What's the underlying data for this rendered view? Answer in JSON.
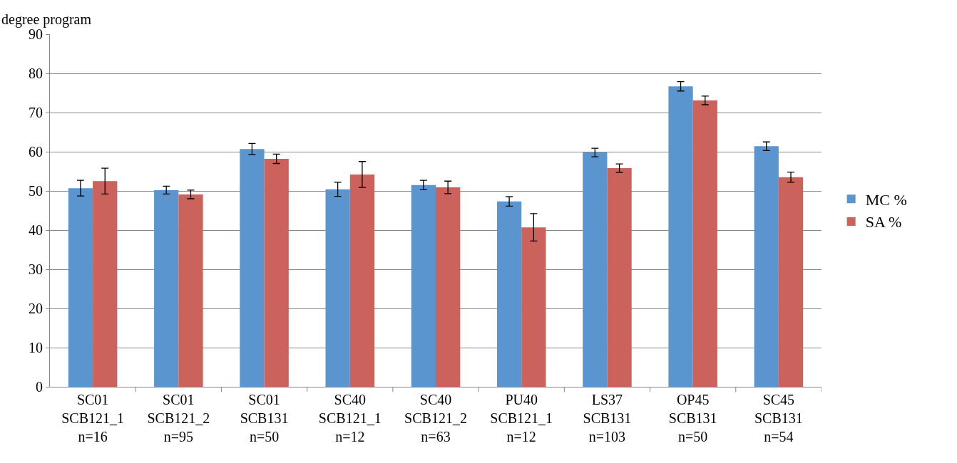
{
  "chart_data": {
    "type": "bar",
    "annotations": [
      "degree program"
    ],
    "categories": [
      "SC01\nSCB121_1\nn=16",
      "SC01\nSCB121_2\nn=95",
      "SC01\nSCB131\nn=50",
      "SC40\nSCB121_1\nn=12",
      "SC40\nSCB121_2\nn=63",
      "PU40\nSCB121_1\nn=12",
      "LS37\nSCB131\nn=103",
      "OP45\nSCB131\nn=50",
      "SC45\nSCB131\nn=54"
    ],
    "series": [
      {
        "name": "MC %",
        "color": "#5b95cf",
        "values": [
          50.7,
          50.2,
          60.7,
          50.4,
          51.5,
          47.3,
          59.8,
          76.7,
          61.4
        ],
        "errors": [
          2,
          1,
          1.4,
          1.8,
          1.2,
          1.2,
          1.1,
          1.2,
          1.1
        ]
      },
      {
        "name": "SA %",
        "color": "#cc625c",
        "values": [
          52.5,
          49.1,
          58.2,
          54.2,
          50.9,
          40.7,
          55.8,
          73.1,
          53.5
        ],
        "errors": [
          3.3,
          1.1,
          1.2,
          3.3,
          1.6,
          3.5,
          1.1,
          1.1,
          1.3
        ]
      }
    ],
    "ylim": [
      0,
      90
    ],
    "yticks": [
      0,
      10,
      20,
      30,
      40,
      50,
      60,
      70,
      80,
      90
    ],
    "grid": "y",
    "legend": "right"
  }
}
